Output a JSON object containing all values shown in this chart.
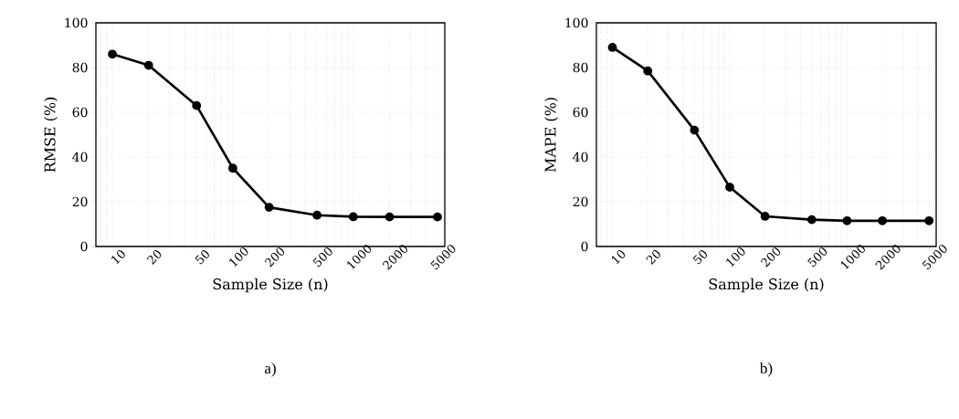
{
  "chart_data": [
    {
      "type": "line",
      "x": [
        10,
        20,
        50,
        100,
        200,
        500,
        1000,
        2000,
        5000
      ],
      "xlim": [
        7.3,
        5750
      ],
      "ylim": [
        0,
        100
      ],
      "log": "x",
      "grid": true,
      "marker": "circle",
      "line_style": "solid",
      "xticks": [
        10,
        20,
        50,
        100,
        200,
        500,
        1000,
        2000,
        5000
      ],
      "yticks": [
        0,
        20,
        40,
        60,
        80,
        100
      ],
      "xlabel": "Sample Size (n)",
      "ylabel": "RMSE (%)",
      "annotations": [
        "a)"
      ],
      "series": [
        {
          "color": "#000000",
          "values": [
            86,
            81,
            63,
            35,
            17.5,
            14,
            13.3,
            13.2,
            13.2
          ]
        }
      ]
    },
    {
      "type": "line",
      "x": [
        10,
        20,
        50,
        100,
        200,
        500,
        1000,
        2000,
        5000
      ],
      "xlim": [
        7.3,
        5750
      ],
      "ylim": [
        0,
        100
      ],
      "log": "x",
      "grid": true,
      "marker": "circle",
      "line_style": "solid",
      "xticks": [
        10,
        20,
        50,
        100,
        200,
        500,
        1000,
        2000,
        5000
      ],
      "yticks": [
        0,
        20,
        40,
        60,
        80,
        100
      ],
      "xlabel": "Sample Size (n)",
      "ylabel": "MAPE (%)",
      "annotations": [
        "b)"
      ],
      "series": [
        {
          "color": "#000000",
          "values": [
            89,
            78.5,
            52,
            26.5,
            13.5,
            12,
            11.5,
            11.5,
            11.5
          ]
        }
      ]
    }
  ]
}
